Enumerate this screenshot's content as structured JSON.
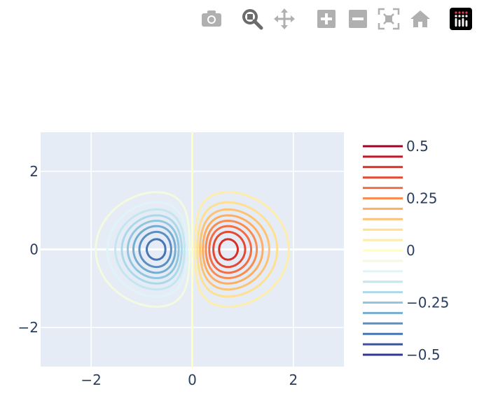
{
  "modebar": {
    "buttons": [
      {
        "name": "camera-icon",
        "title": "Download plot as a png"
      },
      {
        "name": "zoom-icon",
        "title": "Zoom",
        "active": true
      },
      {
        "name": "pan-icon",
        "title": "Pan"
      },
      {
        "name": "zoom-in-icon",
        "title": "Zoom in"
      },
      {
        "name": "zoom-out-icon",
        "title": "Zoom out"
      },
      {
        "name": "autoscale-icon",
        "title": "Autoscale"
      },
      {
        "name": "home-icon",
        "title": "Reset axes"
      },
      {
        "name": "plotly-logo-icon",
        "title": "Produced with Plotly"
      }
    ]
  },
  "colors": {
    "plot_bg": "#e5ecf6",
    "grid": "#ffffff",
    "text": "#2a3f5f",
    "modebar_icon": "#b0b0b0",
    "modebar_active": "#6b6b6b"
  },
  "chart_data": {
    "type": "contour",
    "function": "x * exp(-(x^2 + y^2))",
    "x_range": [
      -3,
      3
    ],
    "y_range": [
      -3,
      3
    ],
    "x_ticks": [
      {
        "value": -2,
        "label": "−2"
      },
      {
        "value": 0,
        "label": "0"
      },
      {
        "value": 2,
        "label": "2"
      }
    ],
    "y_ticks": [
      {
        "value": 2,
        "label": "2"
      },
      {
        "value": 0,
        "label": "0"
      },
      {
        "value": -2,
        "label": "−2"
      }
    ],
    "levels": [
      0.5,
      0.45,
      0.4,
      0.35,
      0.3,
      0.25,
      0.2,
      0.15,
      0.1,
      0.05,
      0,
      -0.05,
      -0.1,
      -0.15,
      -0.2,
      -0.25,
      -0.3,
      -0.35,
      -0.4,
      -0.45,
      -0.5
    ],
    "level_colors": [
      "#a50026",
      "#bd1a26",
      "#d73027",
      "#e34a33",
      "#f46d43",
      "#f88d51",
      "#fdae61",
      "#fdc374",
      "#fee090",
      "#feecaa",
      "#ffffbf",
      "#f2fae0",
      "#e0f3f8",
      "#c4e6f0",
      "#abd9e9",
      "#92c5de",
      "#74add1",
      "#5b8fc2",
      "#4575b4",
      "#3a51a1",
      "#313695"
    ],
    "colorbar_ticks": [
      {
        "value": 0.5,
        "label": "0.5"
      },
      {
        "value": 0.25,
        "label": "0.25"
      },
      {
        "value": 0,
        "label": "0"
      },
      {
        "value": -0.25,
        "label": "−0.25"
      },
      {
        "value": -0.5,
        "label": "−0.5"
      }
    ],
    "grid": true,
    "colorscale": "RdYlBu",
    "legend_placement": "right"
  }
}
